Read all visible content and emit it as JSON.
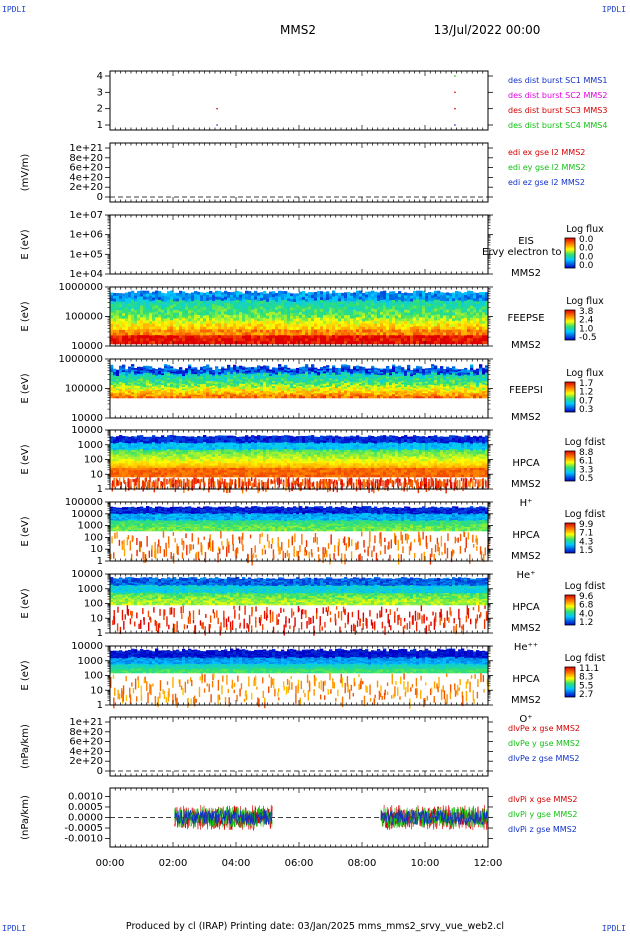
{
  "corners": {
    "top_left": "IPDLI",
    "top_right": "IPDLI",
    "bottom_left": "IPDLI",
    "bottom_right": "IPDLI"
  },
  "header": {
    "spacecraft": "MMS2",
    "date": "13/Jul/2022 00:00"
  },
  "footer": "Produced by cl (IRAP)   Printing date: 03/Jan/2025   mms_mms2_srvy_vue_web2.cl",
  "colors": {
    "c_red": "#d40000",
    "c_green": "#10c010",
    "c_blue": "#1030c8",
    "c_magenta": "#e000e0"
  },
  "chart_data": [
    {
      "type": "scatter",
      "panel": "burst",
      "yticks": [
        "1",
        "2",
        "3",
        "4"
      ],
      "legend": [
        {
          "text": "des dist burst SC1 MMS1",
          "color": "#1030c8"
        },
        {
          "text": "des dist burst SC2 MMS2",
          "color": "#e000e0"
        },
        {
          "text": "des dist burst SC3 MMS3",
          "color": "#d40000"
        },
        {
          "text": "des dist burst SC4 MMS4",
          "color": "#10c010"
        }
      ],
      "points": [
        {
          "t": 3.4,
          "y": 1,
          "color": "#1030c8"
        },
        {
          "t": 3.4,
          "y": 2,
          "color": "#d40000"
        },
        {
          "t": 10.95,
          "y": 1,
          "color": "#1030c8"
        },
        {
          "t": 10.95,
          "y": 2,
          "color": "#d40000"
        },
        {
          "t": 10.95,
          "y": 3,
          "color": "#d40000"
        },
        {
          "t": 10.95,
          "y": 4,
          "color": "#10c010"
        }
      ]
    },
    {
      "type": "line",
      "panel": "edi",
      "ylabel": "(mV/m)",
      "yticks": [
        "0",
        "2e+20",
        "4e+20",
        "6e+20",
        "8e+20",
        "1e+21"
      ],
      "legend": [
        {
          "text": "edi ex gse l2 MMS2",
          "color": "#d40000"
        },
        {
          "text": "edi ey gse l2 MMS2",
          "color": "#10c010"
        },
        {
          "text": "edi ez gse l2 MMS2",
          "color": "#1030c8"
        }
      ],
      "series": []
    },
    {
      "type": "heatmap",
      "panel": "eis",
      "ylabel": "E (eV)",
      "yticks": [
        "1e+04",
        "1e+05",
        "1e+06",
        "1e+07"
      ],
      "labels": [
        "EIS",
        "MMS2"
      ],
      "overlay": "Ervy electron to",
      "cb_title": "Log flux",
      "cb_values": [
        "0.0",
        "0.0",
        "0.0",
        "0.0"
      ]
    },
    {
      "type": "heatmap",
      "panel": "feepse",
      "ylabel": "E (eV)",
      "yticks": [
        "10000",
        "100000",
        "1000000"
      ],
      "labels": [
        "FEEPSE",
        "MMS2"
      ],
      "cb_title": "Log flux",
      "cb_values": [
        "3.8",
        "2.4",
        "1.0",
        "-0.5"
      ]
    },
    {
      "type": "heatmap",
      "panel": "feepsi",
      "ylabel": "E (eV)",
      "yticks": [
        "10000",
        "100000",
        "1000000"
      ],
      "labels": [
        "FEEPSI",
        "MMS2"
      ],
      "cb_title": "Log flux",
      "cb_values": [
        "1.7",
        "1.2",
        "0.7",
        "0.3"
      ]
    },
    {
      "type": "heatmap",
      "panel": "hpca_h",
      "ylabel": "E (eV)",
      "yticks": [
        "1",
        "10",
        "100",
        "1000",
        "10000"
      ],
      "labels": [
        "HPCA",
        "MMS2",
        "H⁺"
      ],
      "cb_title": "Log fdist",
      "cb_values": [
        "8.8",
        "6.1",
        "3.3",
        "0.5"
      ]
    },
    {
      "type": "heatmap",
      "panel": "hpca_he",
      "ylabel": "E (eV)",
      "yticks": [
        "1",
        "10",
        "100",
        "1000",
        "10000",
        "100000"
      ],
      "labels": [
        "HPCA",
        "MMS2",
        "He⁺"
      ],
      "cb_title": "Log fdist",
      "cb_values": [
        "9.9",
        "7.1",
        "4.3",
        "1.5"
      ]
    },
    {
      "type": "heatmap",
      "panel": "hpca_hepp",
      "ylabel": "E (eV)",
      "yticks": [
        "1",
        "10",
        "100",
        "1000",
        "10000"
      ],
      "labels": [
        "HPCA",
        "MMS2",
        "He⁺⁺"
      ],
      "cb_title": "Log fdist",
      "cb_values": [
        "9.6",
        "6.8",
        "4.0",
        "1.2"
      ]
    },
    {
      "type": "heatmap",
      "panel": "hpca_o",
      "ylabel": "E (eV)",
      "yticks": [
        "1",
        "10",
        "100",
        "1000",
        "10000"
      ],
      "labels": [
        "HPCA",
        "MMS2",
        "O⁺"
      ],
      "cb_title": "Log fdist",
      "cb_values": [
        "11.1",
        "8.3",
        "5.5",
        "2.7"
      ]
    },
    {
      "type": "line",
      "panel": "dpe",
      "ylabel": "(nPa/km)",
      "yticks": [
        "0",
        "2e+20",
        "4e+20",
        "6e+20",
        "8e+20",
        "1e+21"
      ],
      "legend": [
        {
          "text": "dlvPe x gse MMS2",
          "color": "#d40000"
        },
        {
          "text": "dlvPe y gse MMS2",
          "color": "#10c010"
        },
        {
          "text": "dlvPe z gse MMS2",
          "color": "#1030c8"
        }
      ],
      "series": []
    },
    {
      "type": "line",
      "panel": "dpi",
      "ylabel": "(nPa/km)",
      "yticks": [
        "-0.0010",
        "-0.0005",
        "0.0000",
        "0.0005",
        "0.0010"
      ],
      "ylim": [
        -0.0014,
        0.0014
      ],
      "legend": [
        {
          "text": "dlvPi x gse MMS2",
          "color": "#d40000"
        },
        {
          "text": "dlvPi y gse MMS2",
          "color": "#10c010"
        },
        {
          "text": "dlvPi z gse MMS2",
          "color": "#1030c8"
        }
      ],
      "data_intervals_hours": [
        [
          2.05,
          5.15
        ],
        [
          8.6,
          12.0
        ]
      ],
      "series": [
        {
          "name": "dlvPi x gse MMS2",
          "color": "#d40000",
          "amplitude": 0.0006
        },
        {
          "name": "dlvPi y gse MMS2",
          "color": "#10c010",
          "amplitude": 0.0005
        },
        {
          "name": "dlvPi z gse MMS2",
          "color": "#1030c8",
          "amplitude": 0.00035
        }
      ]
    }
  ],
  "time_axis": {
    "ticks": [
      "00:00",
      "02:00",
      "04:00",
      "06:00",
      "08:00",
      "10:00",
      "12:00"
    ],
    "range_hours": [
      0,
      12
    ]
  }
}
